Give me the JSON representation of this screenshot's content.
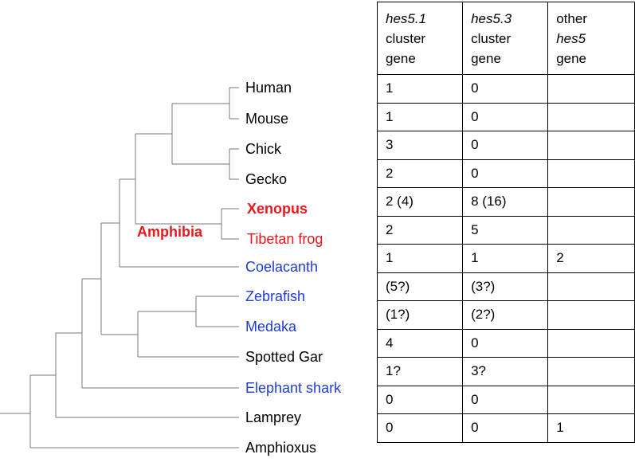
{
  "colors": {
    "black": "#000000",
    "red": "#e8171c",
    "blue": "#1f3bd6",
    "line": "#777777"
  },
  "clade_label": {
    "text": "Amphibia",
    "color": "#e8171c"
  },
  "taxa": [
    {
      "name": "Human",
      "color": "#000000",
      "bold": false
    },
    {
      "name": "Mouse",
      "color": "#000000",
      "bold": false
    },
    {
      "name": "Chick",
      "color": "#000000",
      "bold": false
    },
    {
      "name": "Gecko",
      "color": "#000000",
      "bold": false
    },
    {
      "name": "Xenopus",
      "color": "#e8171c",
      "bold": true
    },
    {
      "name": "Tibetan frog",
      "color": "#e8171c",
      "bold": false
    },
    {
      "name": "Coelacanth",
      "color": "#1f3bd6",
      "bold": false
    },
    {
      "name": "Zebrafish",
      "color": "#1f3bd6",
      "bold": false
    },
    {
      "name": "Medaka",
      "color": "#1f3bd6",
      "bold": false
    },
    {
      "name": "Spotted Gar",
      "color": "#000000",
      "bold": false
    },
    {
      "name": "Elephant shark",
      "color": "#1f3bd6",
      "bold": false
    },
    {
      "name": "Lamprey",
      "color": "#000000",
      "bold": false
    },
    {
      "name": "Amphioxus",
      "color": "#000000",
      "bold": false
    }
  ],
  "table": {
    "headers": [
      {
        "italic": "hes5.1",
        "rest": [
          "cluster",
          "gene"
        ]
      },
      {
        "italic": "hes5.3",
        "rest": [
          "cluster",
          "gene"
        ]
      },
      {
        "plain_top": "other",
        "italic": "hes5",
        "rest": [
          "gene"
        ]
      }
    ],
    "rows": [
      [
        "1",
        "0",
        ""
      ],
      [
        "1",
        "0",
        ""
      ],
      [
        "3",
        "0",
        ""
      ],
      [
        "2",
        "0",
        ""
      ],
      [
        "2 (4)",
        "8 (16)",
        ""
      ],
      [
        "2",
        "5",
        ""
      ],
      [
        "1",
        "1",
        "2"
      ],
      [
        "(5?)",
        "(3?)",
        ""
      ],
      [
        "(1?)",
        "(2?)",
        ""
      ],
      [
        "4",
        "0",
        ""
      ],
      [
        "1?",
        "3?",
        ""
      ],
      [
        "0",
        "0",
        ""
      ],
      [
        "0",
        "0",
        "1"
      ]
    ]
  }
}
